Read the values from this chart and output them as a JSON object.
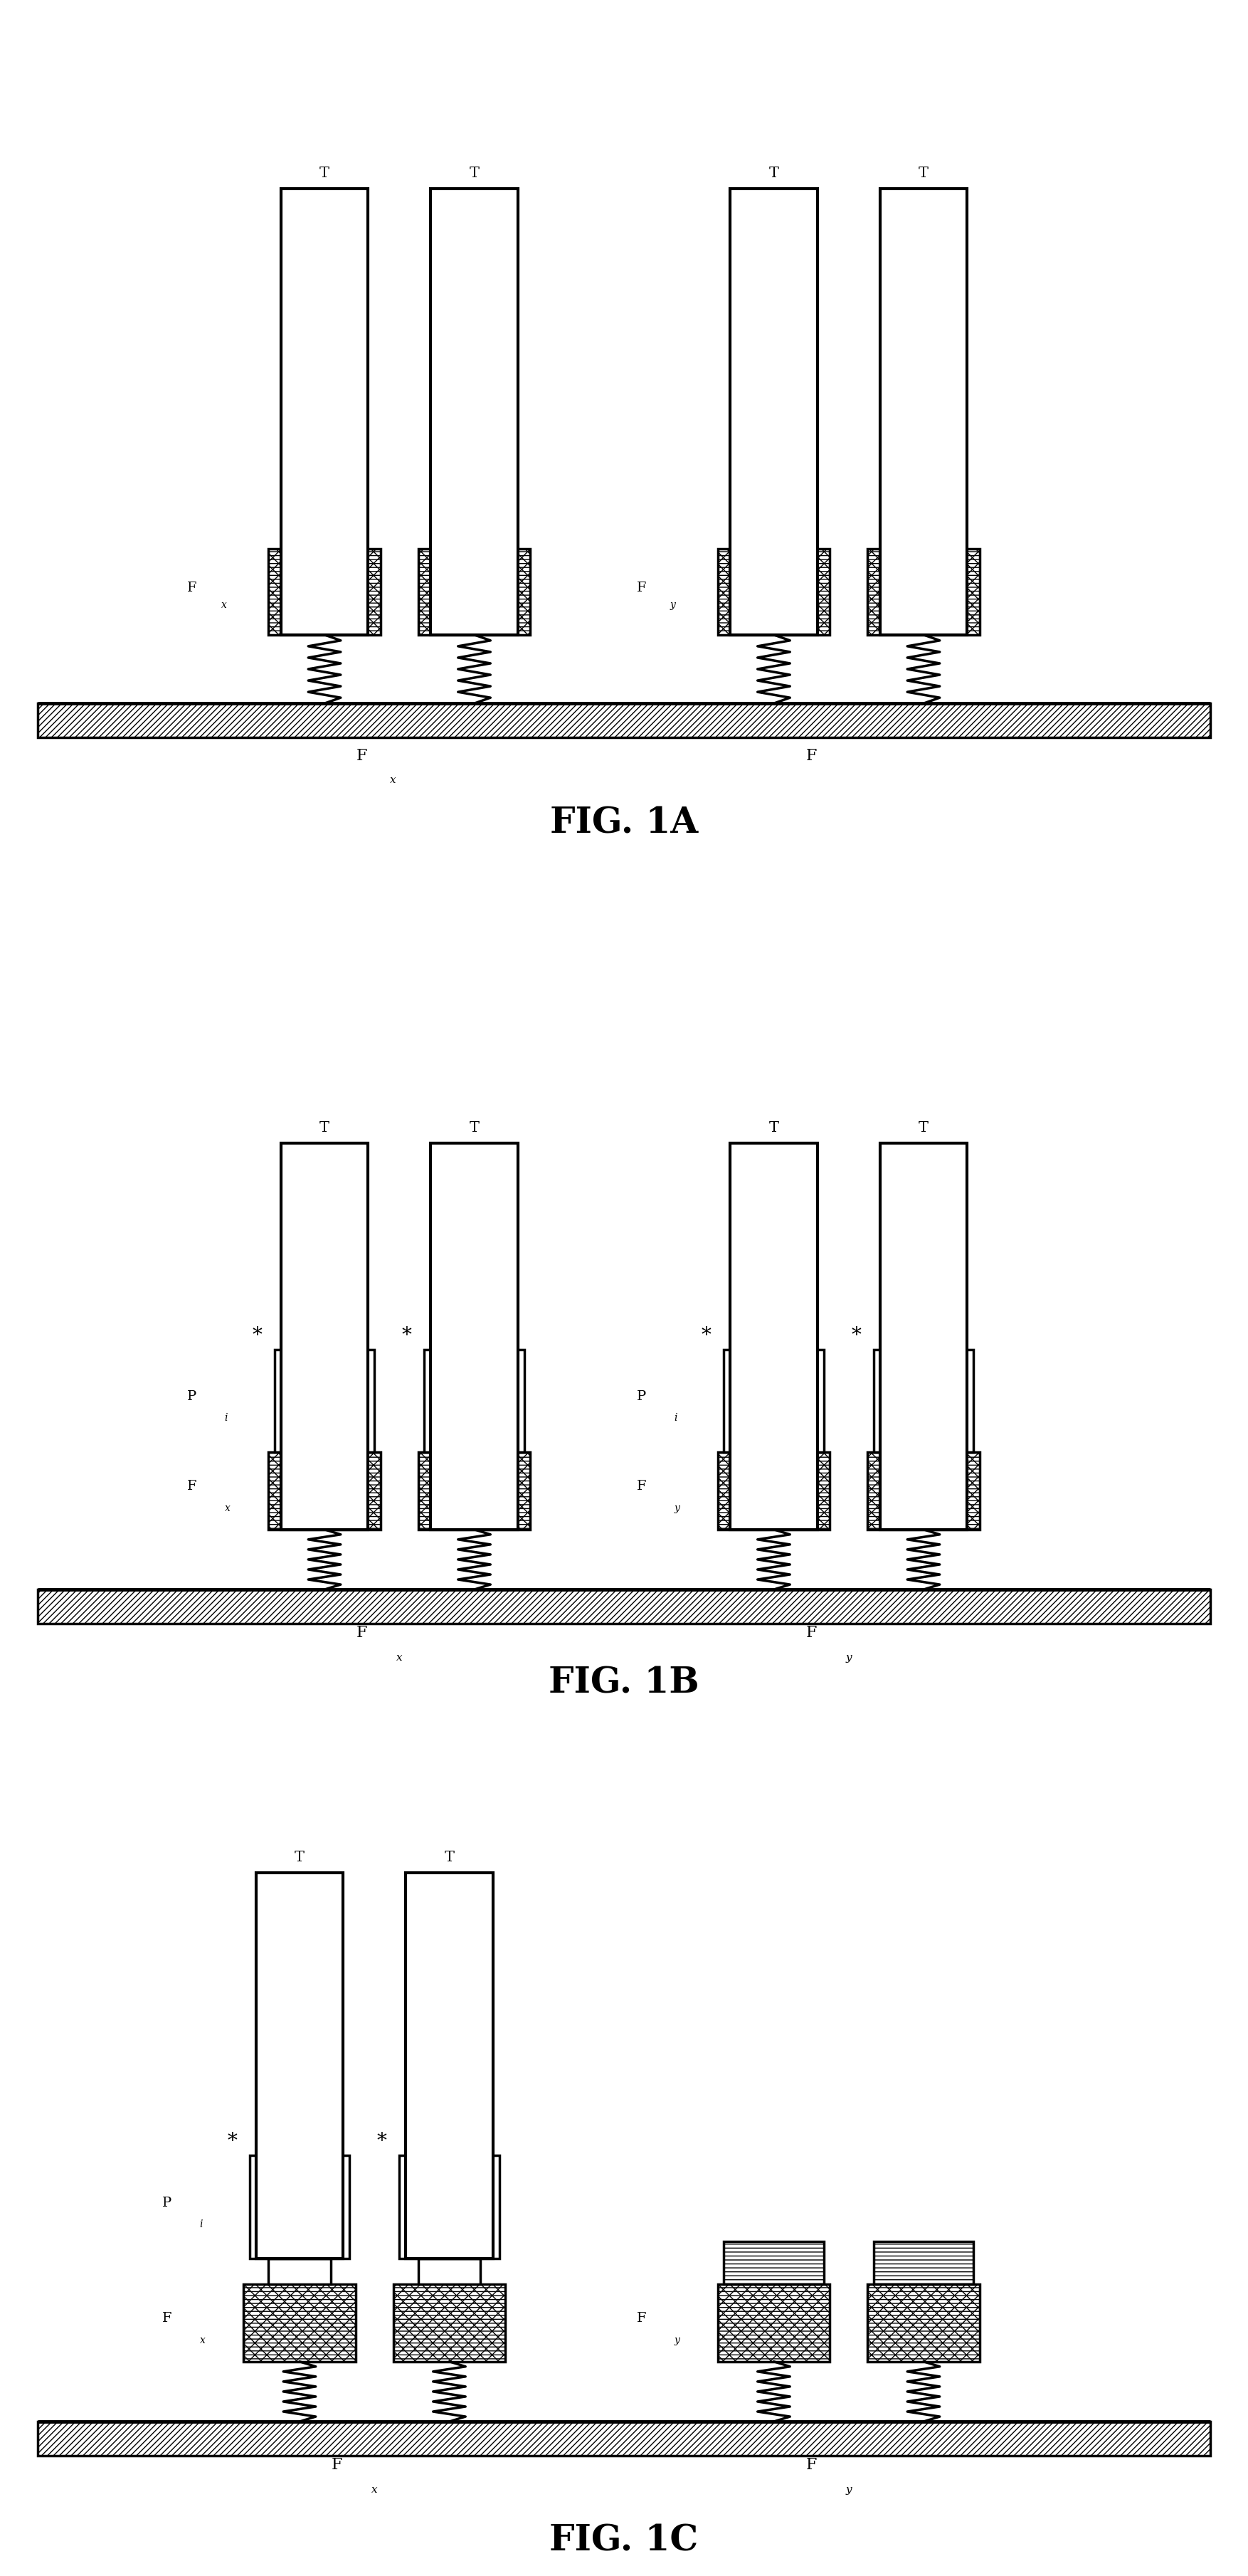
{
  "fig_labels": [
    "FIG. 1A",
    "FIG. 1B",
    "FIG. 1C"
  ],
  "background_color": "#ffffff",
  "line_color": "#000000",
  "lw": 2.5,
  "fig_label_fontsize": 36
}
